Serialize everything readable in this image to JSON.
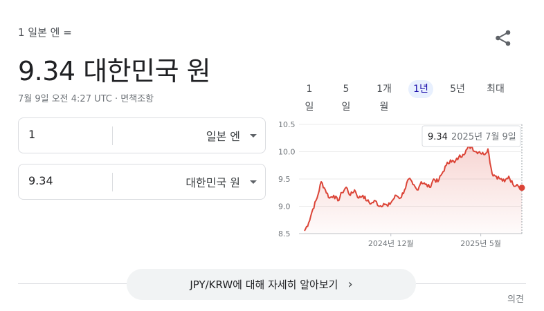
{
  "header": {
    "base_line": "1 일본 엔 =",
    "result_line": "9.34 대한민국 원",
    "timestamp": "7월 9일 오전 4:27 UTC",
    "separator": " · ",
    "disclaimer": "면책조항"
  },
  "icons": {
    "share": "share-icon",
    "caret": "chevron-down-icon",
    "arrow": "chevron-right-icon"
  },
  "converter": {
    "from": {
      "amount": "1",
      "currency": "일본 엔"
    },
    "to": {
      "amount": "9.34",
      "currency": "대한민국 원"
    }
  },
  "range_tabs": [
    {
      "label": "1일",
      "active": false
    },
    {
      "label": "5일",
      "active": false
    },
    {
      "label": "1개월",
      "active": false
    },
    {
      "label": "1년",
      "active": true
    },
    {
      "label": "5년",
      "active": false
    },
    {
      "label": "최대",
      "active": false
    }
  ],
  "tooltip": {
    "value": "9.34",
    "date": "2025년 7월 9일"
  },
  "colors": {
    "line": "#db4437",
    "active_tab_bg": "#e8f0fe",
    "active_tab_text": "#1a0dab"
  },
  "chart_data": {
    "type": "area",
    "ylim": [
      8.5,
      10.5
    ],
    "yticks": [
      "10.5",
      "10.0",
      "9.5",
      "9.0",
      "8.5"
    ],
    "ytick_values": [
      10.5,
      10.0,
      9.5,
      9.0,
      8.5
    ],
    "xtick_labels": [
      "2024년 12월",
      "2025년 5월"
    ],
    "xtick_dates": [
      "2024-12-01",
      "2025-05-01"
    ],
    "grid": true,
    "series": [
      {
        "x": [
          "2024-07-09",
          "2024-07-16",
          "2024-07-23",
          "2024-07-30",
          "2024-08-06",
          "2024-08-13",
          "2024-08-20",
          "2024-08-27",
          "2024-09-03",
          "2024-09-10",
          "2024-09-17",
          "2024-09-24",
          "2024-10-01",
          "2024-10-08",
          "2024-10-15",
          "2024-10-22",
          "2024-10-29",
          "2024-11-05",
          "2024-11-12",
          "2024-11-19",
          "2024-11-26",
          "2024-12-03",
          "2024-12-10",
          "2024-12-17",
          "2024-12-24",
          "2024-12-31",
          "2025-01-07",
          "2025-01-14",
          "2025-01-21",
          "2025-01-28",
          "2025-02-04",
          "2025-02-11",
          "2025-02-18",
          "2025-02-25",
          "2025-03-04",
          "2025-03-11",
          "2025-03-18",
          "2025-03-25",
          "2025-04-01",
          "2025-04-08",
          "2025-04-15",
          "2025-04-22",
          "2025-04-29",
          "2025-05-06",
          "2025-05-13",
          "2025-05-20",
          "2025-05-27",
          "2025-06-03",
          "2025-06-10",
          "2025-06-17",
          "2025-06-24",
          "2025-07-01",
          "2025-07-09"
        ],
        "values": [
          8.55,
          8.7,
          8.95,
          9.15,
          9.45,
          9.3,
          9.15,
          9.2,
          9.1,
          9.25,
          9.35,
          9.2,
          9.3,
          9.15,
          9.2,
          9.1,
          9.05,
          9.1,
          9.0,
          9.05,
          9.0,
          9.1,
          9.2,
          9.15,
          9.3,
          9.5,
          9.4,
          9.3,
          9.45,
          9.4,
          9.35,
          9.5,
          9.45,
          9.6,
          9.75,
          9.85,
          9.8,
          9.9,
          9.95,
          10.05,
          10.1,
          10.0,
          10.0,
          9.95,
          10.05,
          9.6,
          9.55,
          9.5,
          9.45,
          9.55,
          9.4,
          9.4,
          9.34
        ]
      }
    ]
  },
  "footer": {
    "learn_more": "JPY/KRW에 대해 자세히 알아보기",
    "feedback": "의견"
  }
}
